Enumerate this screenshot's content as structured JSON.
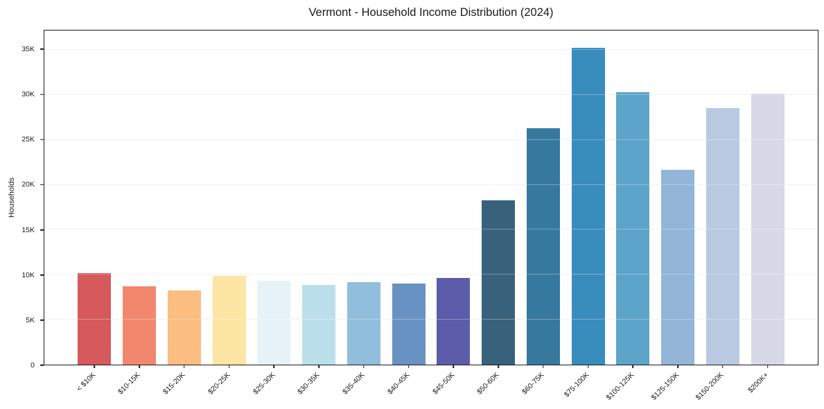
{
  "chart_data": {
    "type": "bar",
    "title": "Vermont - Household Income Distribution (2024)",
    "xlabel": "",
    "ylabel": "Households",
    "categories": [
      "< $10K",
      "$10-15K",
      "$15-20K",
      "$20-25K",
      "$25-30K",
      "$30-35K",
      "$35-40K",
      "$40-45K",
      "$45-50K",
      "$50-60K",
      "$60-75K",
      "$75-100K",
      "$100-125K",
      "$125-150K",
      "$150-200K",
      "$200K+"
    ],
    "values": [
      10150,
      8700,
      8250,
      9850,
      9350,
      8900,
      9150,
      9000,
      9600,
      18300,
      26300,
      35250,
      30300,
      21650,
      28550,
      30150
    ],
    "bar_colors": [
      "#d6595b",
      "#f1886d",
      "#fbbd80",
      "#fde5a4",
      "#e7f2f8",
      "#bcdfec",
      "#92bedd",
      "#6992c4",
      "#5c5cab",
      "#38627b",
      "#37799e",
      "#388dbd",
      "#5ca4ca",
      "#92b5d8",
      "#b9c9e1",
      "#d8d9e7"
    ],
    "y_tick_labels": [
      "0",
      "5K",
      "10K",
      "15K",
      "20K",
      "25K",
      "30K",
      "35K"
    ],
    "y_tick_values": [
      0,
      5000,
      10000,
      15000,
      20000,
      25000,
      30000,
      35000
    ],
    "ylim": [
      0,
      37150
    ],
    "grid": "horizontal",
    "legend": "none",
    "x_tick_rotation_deg": 45
  },
  "style_colors": {
    "background": "#ffffff",
    "frame": "#1a1a1a",
    "gridline": "#e9e9e9",
    "text": "#1a1a1a"
  }
}
